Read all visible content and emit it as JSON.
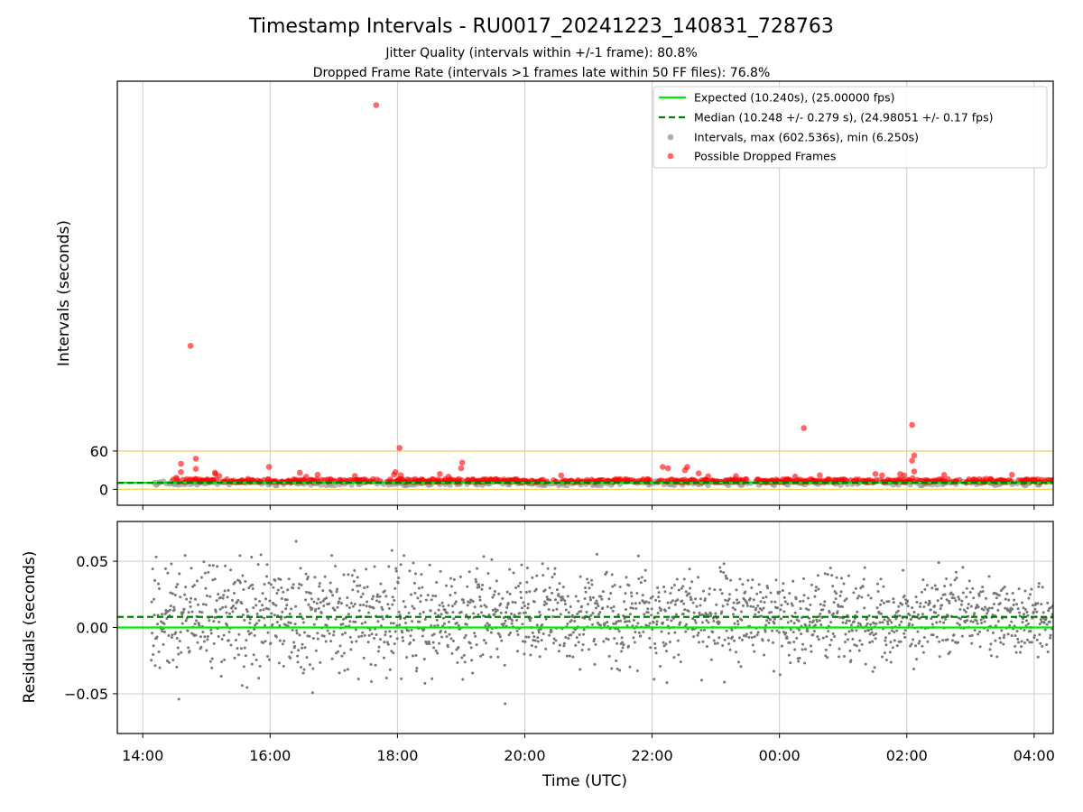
{
  "figure": {
    "title": "Timestamp Intervals - RU0017_20241223_140831_728763",
    "subtitle_1": "Jitter Quality (intervals within +/-1 frame): 80.8%",
    "subtitle_2": "Dropped Frame Rate (intervals >1 frames late within 50 FF files): 76.8%",
    "xlabel": "Time (UTC)"
  },
  "colors": {
    "expected": "#00ee00",
    "median": "#008000",
    "intervals": "#999999",
    "dropped": "#ff0000",
    "threshold": "#f5c842",
    "residual_points": "#777777",
    "grid": "#cccccc"
  },
  "chart_data": [
    {
      "type": "scatter",
      "ylabel": "Intervals (seconds)",
      "x_type": "time",
      "xlim": [
        "2024-12-23 13:36",
        "2024-12-24 04:18"
      ],
      "x_ticks": [
        "14:00",
        "16:00",
        "18:00",
        "20:00",
        "22:00",
        "00:00",
        "02:00",
        "04:00"
      ],
      "x_tick_times": [
        "2024-12-23 14:00",
        "2024-12-23 16:00",
        "2024-12-23 18:00",
        "2024-12-23 20:00",
        "2024-12-23 22:00",
        "2024-12-24 00:00",
        "2024-12-24 02:00",
        "2024-12-24 04:00"
      ],
      "ylim": [
        -25,
        640
      ],
      "y_ticks": [
        0,
        60
      ],
      "grid": "x",
      "legend_position": "top-right",
      "legend": [
        {
          "label": "Expected (10.240s), (25.00000 fps)",
          "kind": "solid-line"
        },
        {
          "label": "Median (10.248 +/- 0.279 s), (24.98051 +/- 0.17 fps)",
          "kind": "dashed-line"
        },
        {
          "label": "Intervals, max (602.536s), min (6.250s)",
          "kind": "gray-dot"
        },
        {
          "label": "Possible Dropped Frames",
          "kind": "red-dot"
        }
      ],
      "expected_interval": 10.24,
      "median_interval": 10.248,
      "threshold_lines": [
        0,
        60
      ],
      "data_span": [
        "2024-12-23 14:08",
        "2024-12-24 04:18"
      ],
      "typical_interval_range": [
        6.25,
        15
      ],
      "dropped_frame_gaps": [
        [
          "2024-12-23 17:45",
          "2024-12-23 17:48"
        ],
        [
          "2024-12-23 20:22",
          "2024-12-23 20:27"
        ],
        [
          "2024-12-23 21:58",
          "2024-12-23 22:05"
        ],
        [
          "2024-12-23 23:30",
          "2024-12-23 23:38"
        ],
        [
          "2024-12-24 02:50",
          "2024-12-24 02:54"
        ],
        [
          "2024-12-24 03:40",
          "2024-12-24 03:45"
        ]
      ],
      "outliers": [
        {
          "x": "2024-12-23 17:40",
          "y": 602.5
        },
        {
          "x": "2024-12-23 14:45",
          "y": 225
        },
        {
          "x": "2024-12-24 00:23",
          "y": 96
        },
        {
          "x": "2024-12-24 02:05",
          "y": 101
        },
        {
          "x": "2024-12-23 18:02",
          "y": 65
        },
        {
          "x": "2024-12-24 02:07",
          "y": 53
        },
        {
          "x": "2024-12-23 14:50",
          "y": 48
        },
        {
          "x": "2024-12-24 02:05",
          "y": 45
        },
        {
          "x": "2024-12-23 19:01",
          "y": 42
        },
        {
          "x": "2024-12-23 14:36",
          "y": 40
        },
        {
          "x": "2024-12-23 19:00",
          "y": 33
        },
        {
          "x": "2024-12-23 15:59",
          "y": 35
        },
        {
          "x": "2024-12-23 22:10",
          "y": 35
        },
        {
          "x": "2024-12-23 22:15",
          "y": 33
        },
        {
          "x": "2024-12-23 22:33",
          "y": 35
        },
        {
          "x": "2024-12-23 22:31",
          "y": 30
        },
        {
          "x": "2024-12-23 14:50",
          "y": 32
        },
        {
          "x": "2024-12-24 02:07",
          "y": 28
        },
        {
          "x": "2024-12-23 14:36",
          "y": 27
        },
        {
          "x": "2024-12-23 15:08",
          "y": 26
        },
        {
          "x": "2024-12-23 16:28",
          "y": 26
        },
        {
          "x": "2024-12-23 17:58",
          "y": 27
        },
        {
          "x": "2024-12-23 18:40",
          "y": 24
        },
        {
          "x": "2024-12-24 00:38",
          "y": 22
        }
      ]
    },
    {
      "type": "scatter",
      "ylabel": "Residuals (seconds)",
      "x_type": "time",
      "xlim": [
        "2024-12-23 13:36",
        "2024-12-24 04:18"
      ],
      "ylim": [
        -0.08,
        0.08
      ],
      "y_ticks": [
        -0.05,
        0.0,
        0.05
      ],
      "y_tick_labels": [
        "−0.05",
        "0.00",
        "0.05"
      ],
      "grid": "both",
      "expected_residual": 0.0,
      "median_residual": 0.008,
      "data_span": [
        "2024-12-23 14:08",
        "2024-12-24 04:18"
      ],
      "residual_spread": [
        -0.08,
        0.08
      ]
    }
  ]
}
